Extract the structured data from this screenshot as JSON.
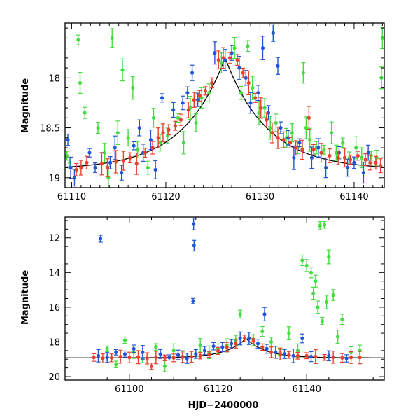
{
  "chart_data": [
    {
      "type": "scatter",
      "panel": "top",
      "title": "",
      "xlabel": "",
      "ylabel": "Magnitude",
      "xlim": [
        61109.3,
        61143.2
      ],
      "ylim": [
        17.45,
        19.1
      ],
      "y_inverted": true,
      "xticks": [
        61110,
        61120,
        61130,
        61140
      ],
      "yticks": [
        18,
        18.5,
        19
      ],
      "ytick_labels": [
        "18",
        "18.5",
        "19"
      ],
      "model_curve": {
        "baseline": 18.92,
        "peak_mag": 17.8,
        "t_peak": 61126.3,
        "tau": 4.5
      },
      "series": [
        {
          "name": "red",
          "color": "#e8402a",
          "points": [
            [
              61110.5,
              18.92
            ],
            [
              61111.0,
              18.9
            ],
            [
              61111.6,
              18.85
            ],
            [
              61113.2,
              18.86
            ],
            [
              61113.8,
              18.9
            ],
            [
              61114.7,
              18.84
            ],
            [
              61115.5,
              18.83
            ],
            [
              61116.2,
              18.8
            ],
            [
              61116.9,
              18.86
            ],
            [
              61117.8,
              18.75
            ],
            [
              61118.6,
              18.7
            ],
            [
              61119.2,
              18.6
            ],
            [
              61119.7,
              18.55
            ],
            [
              61120.3,
              18.52
            ],
            [
              61121.0,
              18.48
            ],
            [
              61121.6,
              18.42
            ],
            [
              61122.4,
              18.32
            ],
            [
              61123.0,
              18.22
            ],
            [
              61123.6,
              18.18
            ],
            [
              61124.2,
              18.13
            ],
            [
              61124.9,
              18.05
            ],
            [
              61125.6,
              17.82
            ],
            [
              61126.1,
              17.8
            ],
            [
              61126.8,
              17.8
            ],
            [
              61127.6,
              17.82
            ],
            [
              61128.2,
              17.95
            ],
            [
              61128.8,
              18.05
            ],
            [
              61129.5,
              18.2
            ],
            [
              61130.1,
              18.3
            ],
            [
              61130.7,
              18.42
            ],
            [
              61131.3,
              18.55
            ],
            [
              61131.9,
              18.6
            ],
            [
              61132.5,
              18.62
            ],
            [
              61133.2,
              18.65
            ],
            [
              61133.8,
              18.7
            ],
            [
              61134.5,
              18.72
            ],
            [
              61135.2,
              18.4
            ],
            [
              61135.7,
              18.72
            ],
            [
              61136.5,
              18.75
            ],
            [
              61137.4,
              18.78
            ],
            [
              61138.3,
              18.8
            ],
            [
              61139.0,
              18.8
            ],
            [
              61139.6,
              18.82
            ],
            [
              61140.4,
              18.78
            ],
            [
              61141.2,
              18.82
            ],
            [
              61141.7,
              18.85
            ],
            [
              61142.3,
              18.85
            ],
            [
              61142.8,
              18.88
            ]
          ]
        },
        {
          "name": "blue",
          "color": "#1f55d6",
          "points": [
            [
              61109.6,
              18.62
            ],
            [
              61109.9,
              18.9
            ],
            [
              61110.3,
              19.0
            ],
            [
              61111.9,
              18.75
            ],
            [
              61112.5,
              18.9
            ],
            [
              61114.1,
              18.85
            ],
            [
              61114.6,
              18.7
            ],
            [
              61115.3,
              18.95
            ],
            [
              61116.6,
              18.68
            ],
            [
              61117.2,
              18.5
            ],
            [
              61117.6,
              18.75
            ],
            [
              61118.4,
              18.62
            ],
            [
              61118.9,
              18.92
            ],
            [
              61119.6,
              18.2
            ],
            [
              61120.8,
              18.32
            ],
            [
              61121.8,
              18.25
            ],
            [
              61122.3,
              18.15
            ],
            [
              61122.8,
              17.95
            ],
            [
              61123.4,
              18.22
            ],
            [
              61125.2,
              17.75
            ],
            [
              61126.3,
              17.82
            ],
            [
              61127.0,
              17.75
            ],
            [
              61127.8,
              17.9
            ],
            [
              61128.5,
              18.0
            ],
            [
              61129.0,
              18.25
            ],
            [
              61129.8,
              18.15
            ],
            [
              61130.3,
              17.7
            ],
            [
              61130.9,
              18.35
            ],
            [
              61131.4,
              17.55
            ],
            [
              61131.9,
              17.88
            ],
            [
              61132.2,
              18.5
            ],
            [
              61133.0,
              18.6
            ],
            [
              61133.6,
              18.8
            ],
            [
              61134.2,
              18.65
            ],
            [
              61135.5,
              18.8
            ],
            [
              61136.2,
              18.7
            ],
            [
              61137.0,
              18.9
            ],
            [
              61138.4,
              18.75
            ],
            [
              61139.3,
              18.9
            ],
            [
              61140.0,
              18.85
            ],
            [
              61141.0,
              18.95
            ],
            [
              61141.5,
              18.75
            ]
          ]
        },
        {
          "name": "green",
          "color": "#44dd3e",
          "points": [
            [
              61109.5,
              18.78
            ],
            [
              61109.8,
              18.85
            ],
            [
              61110.7,
              17.62
            ],
            [
              61110.9,
              18.05
            ],
            [
              61111.4,
              18.35
            ],
            [
              61112.8,
              18.5
            ],
            [
              61113.5,
              18.75
            ],
            [
              61113.9,
              19.0
            ],
            [
              61114.3,
              17.6
            ],
            [
              61114.9,
              18.55
            ],
            [
              61115.4,
              17.92
            ],
            [
              61116.0,
              18.6
            ],
            [
              61116.5,
              18.1
            ],
            [
              61117.0,
              18.72
            ],
            [
              61118.1,
              18.9
            ],
            [
              61118.7,
              18.4
            ],
            [
              61119.4,
              18.65
            ],
            [
              61120.2,
              18.58
            ],
            [
              61121.3,
              18.4
            ],
            [
              61121.9,
              18.65
            ],
            [
              61122.6,
              18.3
            ],
            [
              61123.2,
              18.45
            ],
            [
              61123.8,
              18.2
            ],
            [
              61124.6,
              18.15
            ],
            [
              61125.9,
              17.85
            ],
            [
              61127.3,
              17.7
            ],
            [
              61128.0,
              18.15
            ],
            [
              61128.7,
              17.68
            ],
            [
              61129.2,
              18.1
            ],
            [
              61129.9,
              18.35
            ],
            [
              61130.5,
              18.3
            ],
            [
              61131.1,
              18.5
            ],
            [
              61131.7,
              18.45
            ],
            [
              61132.8,
              18.6
            ],
            [
              61133.4,
              18.55
            ],
            [
              61134.0,
              18.7
            ],
            [
              61134.6,
              17.95
            ],
            [
              61134.9,
              18.5
            ],
            [
              61135.3,
              18.62
            ],
            [
              61136.0,
              18.7
            ],
            [
              61136.8,
              18.72
            ],
            [
              61137.6,
              18.55
            ],
            [
              61138.1,
              18.75
            ],
            [
              61138.8,
              18.65
            ],
            [
              61139.5,
              18.8
            ],
            [
              61140.2,
              18.7
            ],
            [
              61140.8,
              18.8
            ],
            [
              61141.8,
              18.78
            ],
            [
              61142.4,
              18.8
            ],
            [
              61142.9,
              18.0
            ],
            [
              61143.0,
              17.6
            ]
          ]
        }
      ]
    },
    {
      "type": "scatter",
      "panel": "bottom",
      "title": "",
      "xlabel": "HJD−2400000",
      "ylabel": "Magnitude",
      "xlim": [
        61085.5,
        61157.5
      ],
      "ylim": [
        10.8,
        20.2
      ],
      "y_inverted": true,
      "xticks": [
        61100,
        61120,
        61140
      ],
      "yticks": [
        12,
        14,
        16,
        18,
        20
      ],
      "ytick_labels": [
        "12",
        "14",
        "16",
        "18",
        "20"
      ],
      "model_curve": {
        "baseline": 18.92,
        "peak_mag": 17.8,
        "t_peak": 61126.3,
        "tau": 4.5
      },
      "series": [
        {
          "name": "red",
          "color": "#e8402a",
          "points": [
            [
              61092,
              18.9
            ],
            [
              61094,
              18.95
            ],
            [
              61096,
              18.92
            ],
            [
              61098,
              18.85
            ],
            [
              61100,
              18.9
            ],
            [
              61102,
              18.88
            ],
            [
              61104,
              18.95
            ],
            [
              61105,
              19.4
            ],
            [
              61106,
              18.9
            ],
            [
              61108,
              18.92
            ],
            [
              61110,
              18.92
            ],
            [
              61112,
              18.85
            ],
            [
              61114,
              18.86
            ],
            [
              61116,
              18.8
            ],
            [
              61118,
              18.72
            ],
            [
              61120,
              18.52
            ],
            [
              61122,
              18.3
            ],
            [
              61124,
              18.1
            ],
            [
              61126,
              17.8
            ],
            [
              61128,
              17.95
            ],
            [
              61130,
              18.3
            ],
            [
              61132,
              18.6
            ],
            [
              61134,
              18.7
            ],
            [
              61136,
              18.75
            ],
            [
              61138,
              18.8
            ],
            [
              61140,
              18.8
            ],
            [
              61142,
              18.85
            ],
            [
              61144,
              18.9
            ],
            [
              61146,
              18.88
            ],
            [
              61148,
              18.92
            ],
            [
              61150,
              18.9
            ],
            [
              61152,
              18.9
            ]
          ]
        },
        {
          "name": "blue",
          "color": "#1f55d6",
          "points": [
            [
              61093.5,
              12.05
            ],
            [
              61093,
              18.8
            ],
            [
              61095,
              18.9
            ],
            [
              61097,
              18.6
            ],
            [
              61099,
              18.7
            ],
            [
              61101,
              18.4
            ],
            [
              61103,
              18.6
            ],
            [
              61107,
              18.7
            ],
            [
              61109,
              18.9
            ],
            [
              61111,
              18.75
            ],
            [
              61113,
              18.95
            ],
            [
              61114.5,
              11.2
            ],
            [
              61114.6,
              12.45
            ],
            [
              61114.4,
              15.65
            ],
            [
              61115,
              18.7
            ],
            [
              61117,
              18.5
            ],
            [
              61119,
              18.25
            ],
            [
              61121,
              18.3
            ],
            [
              61123,
              18.1
            ],
            [
              61125,
              17.8
            ],
            [
              61127,
              17.8
            ],
            [
              61129,
              18.1
            ],
            [
              61130.5,
              16.4
            ],
            [
              61131,
              18.4
            ],
            [
              61133,
              18.6
            ],
            [
              61135,
              18.7
            ],
            [
              61137,
              18.8
            ],
            [
              61139,
              17.8
            ],
            [
              61141,
              18.85
            ],
            [
              61145,
              18.8
            ],
            [
              61149,
              18.95
            ]
          ]
        },
        {
          "name": "green",
          "color": "#44dd3e",
          "points": [
            [
              61095,
              18.4
            ],
            [
              61097,
              19.3
            ],
            [
              61099,
              17.9
            ],
            [
              61101,
              18.6
            ],
            [
              61103,
              19.0
            ],
            [
              61106,
              18.3
            ],
            [
              61108,
              19.4
            ],
            [
              61110,
              18.5
            ],
            [
              61112,
              18.9
            ],
            [
              61116,
              18.2
            ],
            [
              61118,
              18.6
            ],
            [
              61120,
              18.4
            ],
            [
              61122,
              18.2
            ],
            [
              61124,
              17.9
            ],
            [
              61125,
              16.4
            ],
            [
              61128,
              17.9
            ],
            [
              61130,
              17.4
            ],
            [
              61132,
              18.0
            ],
            [
              61134,
              18.6
            ],
            [
              61136,
              17.5
            ],
            [
              61138,
              18.5
            ],
            [
              61139,
              13.3
            ],
            [
              61140,
              13.6
            ],
            [
              61141,
              14.0
            ],
            [
              61142,
              14.5
            ],
            [
              61142.5,
              16.0
            ],
            [
              61143,
              11.3
            ],
            [
              61144,
              11.25
            ],
            [
              61144.5,
              15.7
            ],
            [
              61145,
              13.1
            ],
            [
              61146,
              15.3
            ],
            [
              61147,
              17.7
            ],
            [
              61148,
              16.7
            ],
            [
              61150,
              18.6
            ],
            [
              61152,
              18.5
            ],
            [
              61143.5,
              16.8
            ],
            [
              61141.5,
              15.2
            ]
          ]
        }
      ]
    }
  ]
}
